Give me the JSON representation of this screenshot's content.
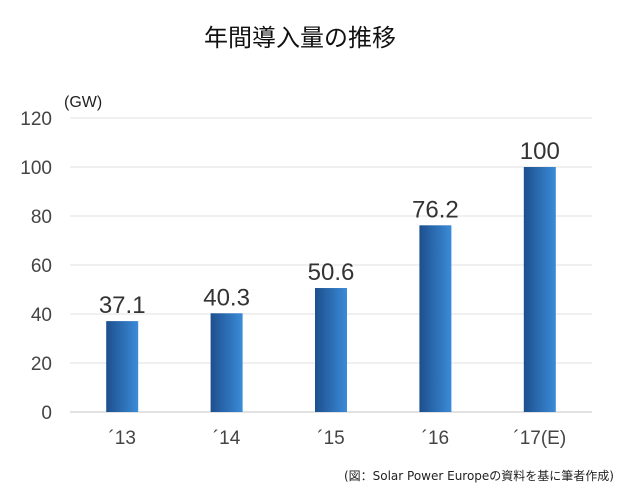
{
  "chart_data": {
    "type": "bar",
    "title": "年間導入量の推移",
    "ylabel": "(GW)",
    "xlabel": "",
    "categories": [
      "´13",
      "´14",
      "´15",
      "´16",
      "´17(E)"
    ],
    "values": [
      37.1,
      40.3,
      50.6,
      76.2,
      100
    ],
    "data_labels": [
      "37.1",
      "40.3",
      "50.6",
      "76.2",
      "100"
    ],
    "ylim": [
      0,
      120
    ],
    "yticks": [
      0,
      20,
      40,
      60,
      80,
      100,
      120
    ],
    "grid": true,
    "bar_color_dark": "#1d4f8e",
    "bar_color_light": "#3b8bd8",
    "source_note": "(図：Solar Power Europeの資料を基に筆者作成)"
  }
}
